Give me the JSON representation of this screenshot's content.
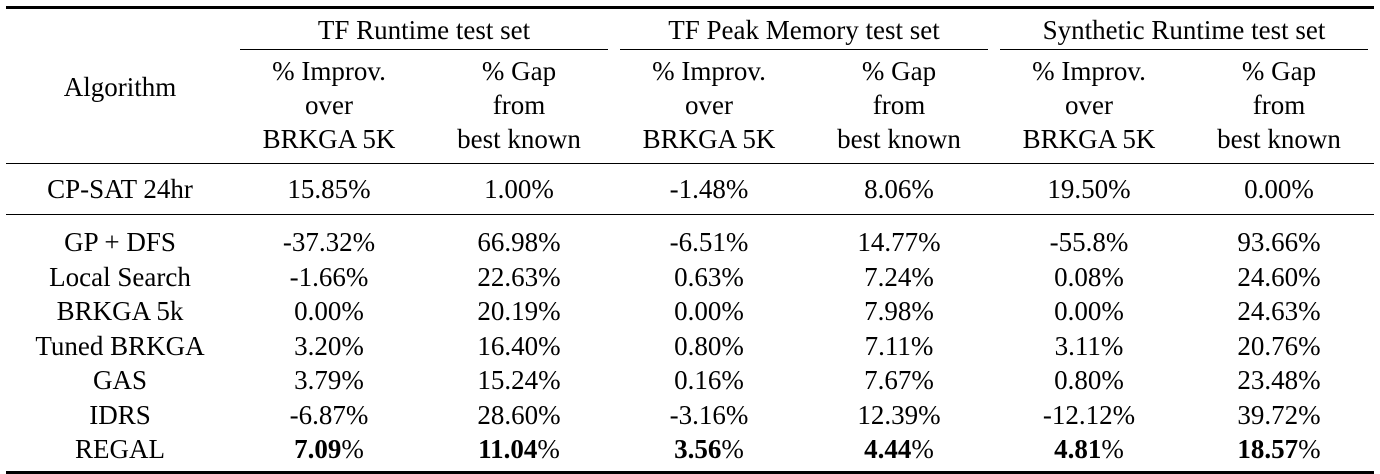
{
  "table": {
    "header": {
      "algorithm_label": "Algorithm",
      "groups": [
        "TF Runtime test set",
        "TF Peak Memory test set",
        "Synthetic Runtime test set"
      ],
      "improv_lines": [
        "% Improv.",
        "over",
        "BRKGA 5K"
      ],
      "gap_lines": [
        "% Gap",
        "from",
        "best known"
      ]
    },
    "cp_sat": {
      "name": "CP-SAT 24hr",
      "values": [
        "15.85%",
        "1.00%",
        "-1.48%",
        "8.06%",
        "19.50%",
        "0.00%"
      ]
    },
    "rows": [
      {
        "name": "GP + DFS",
        "values": [
          "-37.32%",
          "66.98%",
          "-6.51%",
          "14.77%",
          "-55.8%",
          "93.66%"
        ]
      },
      {
        "name": "Local Search",
        "values": [
          "-1.66%",
          "22.63%",
          "0.63%",
          "7.24%",
          "0.08%",
          "24.60%"
        ]
      },
      {
        "name": "BRKGA 5k",
        "values": [
          "0.00%",
          "20.19%",
          "0.00%",
          "7.98%",
          "0.00%",
          "24.63%"
        ]
      },
      {
        "name": "Tuned BRKGA",
        "values": [
          "3.20%",
          "16.40%",
          "0.80%",
          "7.11%",
          "3.11%",
          "20.76%"
        ]
      },
      {
        "name": "GAS",
        "values": [
          "3.79%",
          "15.24%",
          "0.16%",
          "7.67%",
          "0.80%",
          "23.48%"
        ]
      },
      {
        "name": "IDRS",
        "values": [
          "-6.87%",
          "28.60%",
          "-3.16%",
          "12.39%",
          "-12.12%",
          "39.72%"
        ]
      }
    ],
    "regal": {
      "name": "REGAL",
      "values": [
        {
          "num": "7.09",
          "pct": "%"
        },
        {
          "num": "11.04",
          "pct": "%"
        },
        {
          "num": "3.56",
          "pct": "%"
        },
        {
          "num": "4.44",
          "pct": "%"
        },
        {
          "num": "4.81",
          "pct": "%"
        },
        {
          "num": "18.57",
          "pct": "%"
        }
      ]
    }
  }
}
